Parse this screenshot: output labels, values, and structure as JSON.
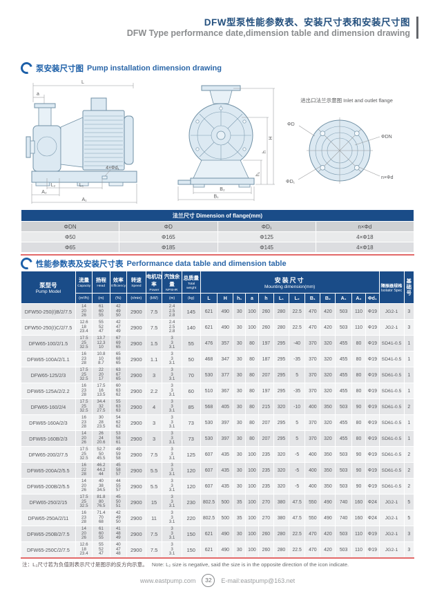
{
  "header": {
    "title_zh": "DFW型泵性能参数表、安装尺寸表和安装尺寸图",
    "title_en": "DFW Type performance date,dimension table and dimension drawing"
  },
  "section1": {
    "title_zh": "泵安装尺寸图",
    "title_en": "Pump installation dimension drawing"
  },
  "drawing": {
    "flange_caption": "进出口法兰示意图 Inlet and outlet flange",
    "labels": {
      "L": "L",
      "a": "a",
      "L2": "L₂",
      "L1": "L₁",
      "A2": "A₂",
      "A1": "A₁",
      "bolts": "4×Φd₁",
      "B2": "B₂",
      "B1": "B₁",
      "H": "H",
      "h": "h",
      "h1": "h₁",
      "phiD": "ΦD",
      "phiDN": "ΦDN",
      "nphid": "n×Φd",
      "phiD1": "ΦD₁"
    }
  },
  "flange_table": {
    "title": "法兰尺寸 Dimension of flange(mm)",
    "columns": [
      "ΦDN",
      "ΦD",
      "ΦD₁",
      "n×Φd"
    ],
    "rows": [
      [
        "Φ50",
        "Φ165",
        "Φ125",
        "4×Φ18"
      ],
      [
        "Φ65",
        "Φ185",
        "Φ145",
        "4×Φ18"
      ]
    ]
  },
  "section2": {
    "title_zh": "性能参数表及安装尺寸表",
    "title_en": "Performance data table and dimension table"
  },
  "perf_table": {
    "headers": {
      "model_zh": "泵型号",
      "model_en": "Pump Model",
      "params": [
        {
          "zh": "流量",
          "en": "Capacity",
          "unit": "(m³/h)"
        },
        {
          "zh": "扬程",
          "en": "Head",
          "unit": "(m)"
        },
        {
          "zh": "效率",
          "en": "Efficiency",
          "unit": "(%)"
        },
        {
          "zh": "转速",
          "en": "Speed",
          "unit": "(r/min)"
        },
        {
          "zh": "电机功率",
          "en": "Power",
          "unit": "(kW)"
        },
        {
          "zh": "汽蚀余量",
          "en": "NPSHR",
          "unit": "(m)"
        },
        {
          "zh": "总质量",
          "en": "Total weight",
          "unit": "(kg)"
        }
      ],
      "mounting_zh": "安装尺寸",
      "mounting_en": "Mounting dimension(mm)",
      "mounting_cols": [
        "L",
        "H",
        "h₁",
        "a",
        "h",
        "L₁",
        "L₂",
        "B₁",
        "B₂",
        "A₁",
        "A₂",
        "Φd₁"
      ],
      "isolator_zh": "隔振器规格",
      "isolator_en": "Isolator Spec",
      "foundation": "基础号"
    },
    "rows": [
      {
        "model": "DFW50-250(I)B/2/7.5",
        "capacity": "14\n20\n26",
        "head": "61\n60\n55",
        "eff": "42\n49\n50",
        "speed": "2900",
        "power": "7.5",
        "npshr": "2.4\n2.5\n2.8",
        "weight": "145",
        "dims": [
          "621",
          "490",
          "30",
          "100",
          "260",
          "280",
          "22.5",
          "470",
          "420",
          "503",
          "110",
          "Φ19"
        ],
        "isolator": "JG2-1",
        "foundation": "3"
      },
      {
        "model": "DFW50-250(I)C/2/7.5",
        "capacity": "12.6\n18\n23.4",
        "head": "55\n52\n47",
        "eff": "42\n47\n49",
        "speed": "2900",
        "power": "7.5",
        "npshr": "2.4\n2.5\n2.8",
        "weight": "140",
        "dims": [
          "621",
          "490",
          "30",
          "100",
          "260",
          "280",
          "22.5",
          "470",
          "420",
          "503",
          "110",
          "Φ19"
        ],
        "isolator": "JG2-1",
        "foundation": "3"
      },
      {
        "model": "DFW65-100/2/1.5",
        "capacity": "17.5\n25\n32.5",
        "head": "13.7\n12.3\n10",
        "eff": "67\n69\n65",
        "speed": "2900",
        "power": "1.5",
        "npshr": "3\n3\n3.1",
        "weight": "55",
        "dims": [
          "476",
          "357",
          "30",
          "80",
          "197",
          "295",
          "-40",
          "370",
          "320",
          "455",
          "80",
          "Φ19"
        ],
        "isolator": "SD41-0.5",
        "foundation": "1"
      },
      {
        "model": "DFW65-100A/2/1.1",
        "capacity": "16\n23\n28",
        "head": "10.8\n10\n8.7",
        "eff": "65\n68\n65",
        "speed": "2900",
        "power": "1.1",
        "npshr": "3\n3\n3.1",
        "weight": "50",
        "dims": [
          "468",
          "347",
          "30",
          "80",
          "187",
          "295",
          "-35",
          "370",
          "320",
          "455",
          "80",
          "Φ19"
        ],
        "isolator": "SD41-0.5",
        "foundation": "1"
      },
      {
        "model": "DFW65-125/2/3",
        "capacity": "17.5\n25\n32.5",
        "head": "22\n20\n17",
        "eff": "63\n67\n65",
        "speed": "2900",
        "power": "3",
        "npshr": "3\n3\n3.1",
        "weight": "70",
        "dims": [
          "530",
          "377",
          "30",
          "80",
          "207",
          "295",
          "5",
          "370",
          "320",
          "455",
          "80",
          "Φ19"
        ],
        "isolator": "SD61-0.5",
        "foundation": "1"
      },
      {
        "model": "DFW65-125A/2/2.2",
        "capacity": "16\n23\n28",
        "head": "17.5\n16\n13.5",
        "eff": "60\n63\n62",
        "speed": "2900",
        "power": "2.2",
        "npshr": "3\n3\n3.1",
        "weight": "60",
        "dims": [
          "510",
          "367",
          "30",
          "80",
          "197",
          "295",
          "-35",
          "370",
          "320",
          "455",
          "80",
          "Φ19"
        ],
        "isolator": "SD61-0.5",
        "foundation": "1"
      },
      {
        "model": "DFW65-160/2/4",
        "capacity": "17.5\n25\n32.5",
        "head": "34.4\n32\n27.5",
        "eff": "55\n63\n63",
        "speed": "2900",
        "power": "4",
        "npshr": "3\n3\n3.1",
        "weight": "85",
        "dims": [
          "568",
          "405",
          "30",
          "80",
          "215",
          "320",
          "-10",
          "400",
          "350",
          "503",
          "90",
          "Φ19"
        ],
        "isolator": "SD61-0.5",
        "foundation": "2"
      },
      {
        "model": "DFW65-160A/2/3",
        "capacity": "16\n23\n28",
        "head": "30\n28\n23.5",
        "eff": "54\n62\n62",
        "speed": "2900",
        "power": "3",
        "npshr": "3\n3\n3.1",
        "weight": "73",
        "dims": [
          "530",
          "397",
          "30",
          "80",
          "207",
          "295",
          "5",
          "370",
          "320",
          "455",
          "80",
          "Φ19"
        ],
        "isolator": "SD61-0.5",
        "foundation": "1"
      },
      {
        "model": "DFW65-160B/2/3",
        "capacity": "14\n20\n26",
        "head": "26\n24\n20.6",
        "eff": "53\n58\n61",
        "speed": "2900",
        "power": "3",
        "npshr": "3\n3\n3.1",
        "weight": "73",
        "dims": [
          "530",
          "397",
          "30",
          "80",
          "207",
          "295",
          "5",
          "370",
          "320",
          "455",
          "80",
          "Φ19"
        ],
        "isolator": "SD61-0.5",
        "foundation": "1"
      },
      {
        "model": "DFW65-200/2/7.5",
        "capacity": "17.5\n25\n32.5",
        "head": "52.7\n50\n45.5",
        "eff": "49\n59\n58",
        "speed": "2900",
        "power": "7.5",
        "npshr": "3\n3\n3.1",
        "weight": "125",
        "dims": [
          "607",
          "435",
          "30",
          "100",
          "235",
          "320",
          "-5",
          "400",
          "350",
          "503",
          "90",
          "Φ19"
        ],
        "isolator": "SD61-0.5",
        "foundation": "2"
      },
      {
        "model": "DFW65-200A/2/5.5",
        "capacity": "16\n22\n28",
        "head": "46.2\n44.2\n44",
        "eff": "45\n58\n57",
        "speed": "2900",
        "power": "5.5",
        "npshr": "3\n3\n3.1",
        "weight": "120",
        "dims": [
          "607",
          "435",
          "30",
          "100",
          "235",
          "320",
          "-5",
          "400",
          "350",
          "503",
          "90",
          "Φ19"
        ],
        "isolator": "SD61-0.5",
        "foundation": "2"
      },
      {
        "model": "DFW65-200B/2/5.5",
        "capacity": "14\n20\n26",
        "head": "40\n38\n34.5",
        "eff": "44\n55\n57",
        "speed": "2900",
        "power": "5.5",
        "npshr": "3\n3\n3.1",
        "weight": "120",
        "dims": [
          "607",
          "435",
          "30",
          "100",
          "235",
          "320",
          "-5",
          "400",
          "350",
          "503",
          "90",
          "Φ19"
        ],
        "isolator": "SD61-0.5",
        "foundation": "2"
      },
      {
        "model": "DFW65-250/2/15",
        "capacity": "17.5\n25\n32.5",
        "head": "81.8\n80\n76.5",
        "eff": "45\n50\n51",
        "speed": "2900",
        "power": "15",
        "npshr": "3\n3\n3.1",
        "weight": "230",
        "dims": [
          "802.5",
          "500",
          "35",
          "100",
          "270",
          "380",
          "47.5",
          "550",
          "490",
          "740",
          "160",
          "Φ24"
        ],
        "isolator": "JG2-1",
        "foundation": "5"
      },
      {
        "model": "DFW65-250A/2/11",
        "capacity": "16\n23\n28",
        "head": "71.4\n70\n68",
        "eff": "42\n49\n50",
        "speed": "2900",
        "power": "11",
        "npshr": "3\n3\n3.1",
        "weight": "220",
        "dims": [
          "802.5",
          "500",
          "35",
          "100",
          "270",
          "380",
          "47.5",
          "550",
          "490",
          "740",
          "160",
          "Φ24"
        ],
        "isolator": "JG2-1",
        "foundation": "5"
      },
      {
        "model": "DFW65-250B/2/7.5",
        "capacity": "14\n20\n26",
        "head": "61\n60\n55",
        "eff": "41\n48\n49",
        "speed": "2900",
        "power": "7.5",
        "npshr": "3\n3\n3.1",
        "weight": "150",
        "dims": [
          "621",
          "490",
          "30",
          "100",
          "260",
          "280",
          "22.5",
          "470",
          "420",
          "503",
          "110",
          "Φ19"
        ],
        "isolator": "JG2-1",
        "foundation": "3"
      },
      {
        "model": "DFW65-250C/2/7.5",
        "capacity": "12.6\n18\n23.4",
        "head": "55\n52\n47",
        "eff": "40\n47\n48",
        "speed": "2900",
        "power": "7.5",
        "npshr": "3\n3\n3.1",
        "weight": "150",
        "dims": [
          "621",
          "490",
          "30",
          "100",
          "260",
          "280",
          "22.5",
          "470",
          "420",
          "503",
          "110",
          "Φ19"
        ],
        "isolator": "JG2-1",
        "foundation": "3"
      }
    ]
  },
  "note": {
    "zh": "注：L₂尺寸若为负值则表示尺寸是图示的反方向示意。",
    "en": "Note: L₂ size is negative, said the size is in the opposite direction of the icon indicate."
  },
  "footer": {
    "website": "www.eastpump.com",
    "page_number": "32",
    "email": "E-mail:eastpump@163.net"
  }
}
